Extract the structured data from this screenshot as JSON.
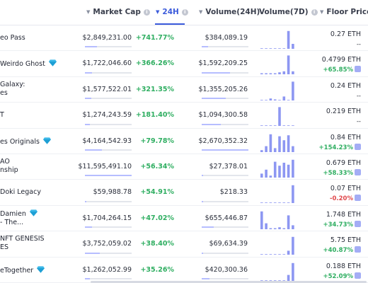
{
  "header": {
    "market_cap": "Market Cap",
    "change_24h": "24H",
    "volume_24h": "Volume(24H)",
    "volume_7d": "Volume(7D)",
    "floor_price": "Floor Price"
  },
  "colors": {
    "accent": "#3b5bdb",
    "positive": "#2fae61",
    "negative": "#e0484c",
    "spark": "#8d97f2"
  },
  "rows": [
    {
      "name": [
        "eo Pass"
      ],
      "verified": false,
      "market_cap": "$2,849,231.00",
      "market_cap_share": 0.25,
      "change_24h": "+741.77%",
      "volume_24h": "$384,089.19",
      "volume_share": 0.14,
      "spark": [
        0,
        0,
        0,
        0,
        0,
        0,
        0.9,
        0.25
      ],
      "floor": "0.27 ETH",
      "floor_change": "--",
      "floor_dir": "flat"
    },
    {
      "name": [
        "Weirdo Ghost"
      ],
      "verified": true,
      "market_cap": "$1,722,046.60",
      "market_cap_share": 0.15,
      "change_24h": "+366.26%",
      "volume_24h": "$1,592,209.25",
      "volume_share": 0.6,
      "spark": [
        0.05,
        0.05,
        0.05,
        0.05,
        0.1,
        0.15,
        0.95,
        0.15
      ],
      "floor": "0.4799 ETH",
      "floor_change": "+65.85%",
      "floor_dir": "up"
    },
    {
      "name": [
        "Galaxy:",
        "es"
      ],
      "verified": false,
      "market_cap": "$1,577,522.01",
      "market_cap_share": 0.14,
      "change_24h": "+321.35%",
      "volume_24h": "$1,355,205.26",
      "volume_share": 0.51,
      "spark": [
        0,
        0,
        0.1,
        0.05,
        0,
        0.2,
        0,
        0.95
      ],
      "floor": "0.24 ETH",
      "floor_change": "--",
      "floor_dir": "flat"
    },
    {
      "name": [
        "T"
      ],
      "verified": false,
      "market_cap": "$1,274,243.59",
      "market_cap_share": 0.11,
      "change_24h": "+181.40%",
      "volume_24h": "$1,094,300.58",
      "volume_share": 0.41,
      "spark": [
        0,
        0,
        0,
        0,
        0.95,
        0,
        0,
        0
      ],
      "floor": "0.219 ETH",
      "floor_change": "--",
      "floor_dir": "flat"
    },
    {
      "name": [
        "es Originals"
      ],
      "verified": true,
      "market_cap": "$4,164,542.93",
      "market_cap_share": 0.36,
      "change_24h": "+79.78%",
      "volume_24h": "$2,670,352.32",
      "volume_share": 1.0,
      "spark": [
        0.1,
        0.3,
        0.9,
        0.2,
        0.8,
        0.6,
        0.85,
        0.3
      ],
      "floor": "0.84 ETH",
      "floor_change": "+154.23%",
      "floor_dir": "up"
    },
    {
      "name": [
        "AO",
        "nship"
      ],
      "verified": false,
      "market_cap": "$11,595,491.10",
      "market_cap_share": 1.0,
      "change_24h": "+56.34%",
      "volume_24h": "$27,378.01",
      "volume_share": 0.01,
      "spark": [
        0.2,
        0.4,
        0.1,
        0.8,
        0.6,
        0.75,
        0.65,
        0.9
      ],
      "floor": "0.679 ETH",
      "floor_change": "+58.33%",
      "floor_dir": "up"
    },
    {
      "name": [
        "Doki Legacy"
      ],
      "verified": false,
      "market_cap": "$59,988.78",
      "market_cap_share": 0.01,
      "change_24h": "+54.91%",
      "volume_24h": "$218.33",
      "volume_share": 0.0,
      "spark": [
        0,
        0,
        0,
        0,
        0,
        0,
        0,
        0.9
      ],
      "floor": "0.07 ETH",
      "floor_change": "-0.20%",
      "floor_dir": "down"
    },
    {
      "name": [
        "Damien",
        "- The..."
      ],
      "verified": true,
      "market_cap": "$1,704,264.15",
      "market_cap_share": 0.15,
      "change_24h": "+47.02%",
      "volume_24h": "$655,446.87",
      "volume_share": 0.25,
      "spark": [
        0.9,
        0.3,
        0.05,
        0.05,
        0.1,
        0.05,
        0.7,
        0.2
      ],
      "floor": "1.748 ETH",
      "floor_change": "+34.73%",
      "floor_dir": "up"
    },
    {
      "name": [
        "NFT GENESIS",
        "ES"
      ],
      "verified": false,
      "market_cap": "$3,752,059.02",
      "market_cap_share": 0.32,
      "change_24h": "+38.40%",
      "volume_24h": "$69,634.39",
      "volume_share": 0.03,
      "spark": [
        0,
        0,
        0,
        0,
        0,
        0,
        0.2,
        0.9
      ],
      "floor": "5.75 ETH",
      "floor_change": "+40.87%",
      "floor_dir": "up"
    },
    {
      "name": [
        "eTogether"
      ],
      "verified": true,
      "market_cap": "$1,262,052.99",
      "market_cap_share": 0.11,
      "change_24h": "+35.26%",
      "volume_24h": "$420,300.36",
      "volume_share": 0.16,
      "spark": [
        0,
        0,
        0,
        0,
        0,
        0,
        0.3,
        0.9
      ],
      "floor": "0.188 ETH",
      "floor_change": "+52.09%",
      "floor_dir": "up"
    }
  ]
}
